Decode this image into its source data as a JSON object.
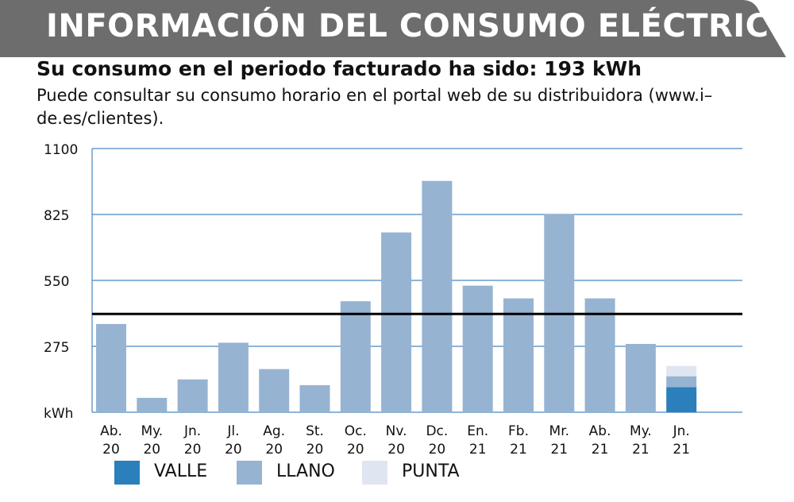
{
  "header": {
    "title": "INFORMACIÓN DEL CONSUMO ELÉCTRICO",
    "headline": "Su consumo en el periodo facturado ha sido: 193 kWh",
    "subtext": "Puede consultar su consumo horario en el portal web de su distribuidora (www.i–de.es/clientes)."
  },
  "colors": {
    "banner": "#6d6d6d",
    "valle": "#2b7fbb",
    "llano": "#97b3d2",
    "punta": "#dfe6f2",
    "grid": "#4a86c0",
    "average_line": "#000000"
  },
  "chart_data": {
    "type": "bar",
    "stacked": true,
    "ylim": [
      0,
      1100
    ],
    "yticks": [
      "kWh",
      "275",
      "550",
      "825",
      "1100"
    ],
    "ytick_values": [
      0,
      275,
      550,
      825,
      1100
    ],
    "categories": [
      [
        "Ab.",
        "20"
      ],
      [
        "My.",
        "20"
      ],
      [
        "Jn.",
        "20"
      ],
      [
        "Jl.",
        "20"
      ],
      [
        "Ag.",
        "20"
      ],
      [
        "St.",
        "20"
      ],
      [
        "Oc.",
        "20"
      ],
      [
        "Nv.",
        "20"
      ],
      [
        "Dc.",
        "20"
      ],
      [
        "En.",
        "21"
      ],
      [
        "Fb.",
        "21"
      ],
      [
        "Mr.",
        "21"
      ],
      [
        "Ab.",
        "21"
      ],
      [
        "My.",
        "21"
      ],
      [
        "Jn.",
        "21"
      ]
    ],
    "series": [
      {
        "name": "VALLE",
        "color": "#2b7fbb",
        "values": [
          0,
          0,
          0,
          0,
          0,
          0,
          0,
          0,
          0,
          0,
          0,
          0,
          0,
          0,
          105
        ]
      },
      {
        "name": "LLANO",
        "color": "#97b3d2",
        "values": [
          368,
          60,
          137,
          290,
          180,
          113,
          463,
          750,
          965,
          528,
          475,
          826,
          475,
          285,
          45
        ]
      },
      {
        "name": "PUNTA",
        "color": "#dfe6f2",
        "values": [
          0,
          0,
          0,
          0,
          0,
          0,
          0,
          0,
          0,
          0,
          0,
          0,
          0,
          0,
          43
        ]
      }
    ],
    "average_line": 410,
    "legend": [
      {
        "name": "VALLE",
        "color": "#2b7fbb"
      },
      {
        "name": "LLANO",
        "color": "#97b3d2"
      },
      {
        "name": "PUNTA",
        "color": "#dfe6f2"
      }
    ],
    "legend_position": "bottom-left",
    "grid": true
  }
}
